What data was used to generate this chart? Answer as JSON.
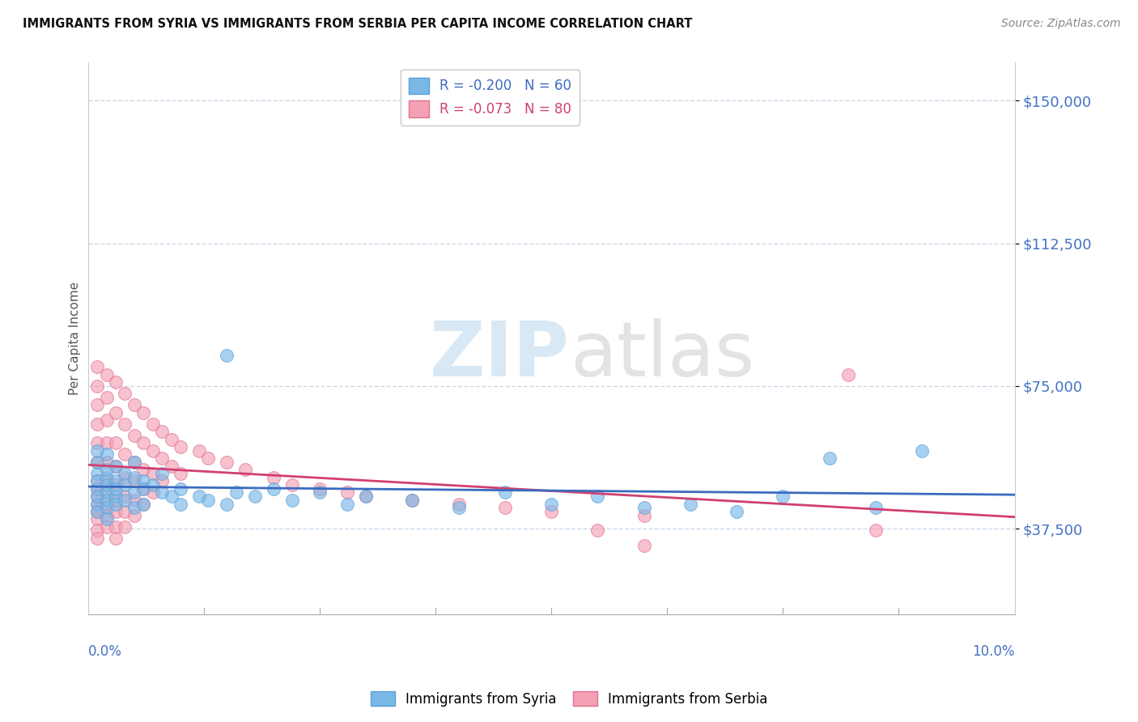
{
  "title": "IMMIGRANTS FROM SYRIA VS IMMIGRANTS FROM SERBIA PER CAPITA INCOME CORRELATION CHART",
  "source": "Source: ZipAtlas.com",
  "ylabel": "Per Capita Income",
  "yticks": [
    37500,
    75000,
    112500,
    150000
  ],
  "ytick_labels": [
    "$37,500",
    "$75,000",
    "$112,500",
    "$150,000"
  ],
  "xmin": 0.0,
  "xmax": 0.1,
  "ymin": 15000,
  "ymax": 160000,
  "syria_color": "#7ab8e8",
  "serbia_color": "#f4a0b5",
  "syria_edge_color": "#5a9fd4",
  "serbia_edge_color": "#e07090",
  "syria_line_color": "#3a6bbf",
  "serbia_line_color": "#d04070",
  "syria_R": -0.2,
  "syria_N": 60,
  "serbia_R": -0.073,
  "serbia_N": 80,
  "legend_label_syria": "R = -0.200   N = 60",
  "legend_label_serbia": "R = -0.073   N = 80",
  "bottom_legend_syria": "Immigrants from Syria",
  "bottom_legend_serbia": "Immigrants from Serbia",
  "watermark_zip": "ZIP",
  "watermark_atlas": "atlas",
  "background_color": "#ffffff",
  "grid_color": "#c8d8e8",
  "title_color": "#111111",
  "axis_label_color": "#4472c4",
  "syria_points": [
    [
      0.001,
      52000
    ],
    [
      0.001,
      48000
    ],
    [
      0.001,
      55000
    ],
    [
      0.001,
      44000
    ],
    [
      0.001,
      50000
    ],
    [
      0.001,
      46000
    ],
    [
      0.001,
      42000
    ],
    [
      0.001,
      58000
    ],
    [
      0.002,
      51000
    ],
    [
      0.002,
      47000
    ],
    [
      0.002,
      53000
    ],
    [
      0.002,
      45000
    ],
    [
      0.002,
      49000
    ],
    [
      0.002,
      43000
    ],
    [
      0.002,
      57000
    ],
    [
      0.002,
      40000
    ],
    [
      0.003,
      50000
    ],
    [
      0.003,
      46000
    ],
    [
      0.003,
      54000
    ],
    [
      0.003,
      44000
    ],
    [
      0.003,
      48000
    ],
    [
      0.004,
      52000
    ],
    [
      0.004,
      45000
    ],
    [
      0.004,
      49000
    ],
    [
      0.005,
      51000
    ],
    [
      0.005,
      47000
    ],
    [
      0.005,
      55000
    ],
    [
      0.005,
      43000
    ],
    [
      0.006,
      50000
    ],
    [
      0.006,
      44000
    ],
    [
      0.006,
      48000
    ],
    [
      0.007,
      49000
    ],
    [
      0.008,
      47000
    ],
    [
      0.008,
      52000
    ],
    [
      0.009,
      46000
    ],
    [
      0.01,
      48000
    ],
    [
      0.01,
      44000
    ],
    [
      0.012,
      46000
    ],
    [
      0.013,
      45000
    ],
    [
      0.015,
      83000
    ],
    [
      0.015,
      44000
    ],
    [
      0.016,
      47000
    ],
    [
      0.018,
      46000
    ],
    [
      0.02,
      48000
    ],
    [
      0.022,
      45000
    ],
    [
      0.025,
      47000
    ],
    [
      0.028,
      44000
    ],
    [
      0.03,
      46000
    ],
    [
      0.035,
      45000
    ],
    [
      0.04,
      43000
    ],
    [
      0.045,
      47000
    ],
    [
      0.05,
      44000
    ],
    [
      0.055,
      46000
    ],
    [
      0.06,
      43000
    ],
    [
      0.065,
      44000
    ],
    [
      0.07,
      42000
    ],
    [
      0.075,
      46000
    ],
    [
      0.08,
      56000
    ],
    [
      0.085,
      43000
    ],
    [
      0.09,
      58000
    ]
  ],
  "serbia_points": [
    [
      0.001,
      80000
    ],
    [
      0.001,
      75000
    ],
    [
      0.001,
      70000
    ],
    [
      0.001,
      65000
    ],
    [
      0.001,
      60000
    ],
    [
      0.001,
      55000
    ],
    [
      0.001,
      50000
    ],
    [
      0.001,
      48000
    ],
    [
      0.001,
      46000
    ],
    [
      0.001,
      44000
    ],
    [
      0.001,
      42000
    ],
    [
      0.001,
      40000
    ],
    [
      0.001,
      37000
    ],
    [
      0.001,
      35000
    ],
    [
      0.002,
      78000
    ],
    [
      0.002,
      72000
    ],
    [
      0.002,
      66000
    ],
    [
      0.002,
      60000
    ],
    [
      0.002,
      55000
    ],
    [
      0.002,
      50000
    ],
    [
      0.002,
      47000
    ],
    [
      0.002,
      44000
    ],
    [
      0.002,
      41000
    ],
    [
      0.002,
      38000
    ],
    [
      0.003,
      76000
    ],
    [
      0.003,
      68000
    ],
    [
      0.003,
      60000
    ],
    [
      0.003,
      54000
    ],
    [
      0.003,
      49000
    ],
    [
      0.003,
      45000
    ],
    [
      0.003,
      42000
    ],
    [
      0.003,
      38000
    ],
    [
      0.003,
      35000
    ],
    [
      0.004,
      73000
    ],
    [
      0.004,
      65000
    ],
    [
      0.004,
      57000
    ],
    [
      0.004,
      51000
    ],
    [
      0.004,
      46000
    ],
    [
      0.004,
      42000
    ],
    [
      0.004,
      38000
    ],
    [
      0.005,
      70000
    ],
    [
      0.005,
      62000
    ],
    [
      0.005,
      55000
    ],
    [
      0.005,
      50000
    ],
    [
      0.005,
      45000
    ],
    [
      0.005,
      41000
    ],
    [
      0.006,
      68000
    ],
    [
      0.006,
      60000
    ],
    [
      0.006,
      53000
    ],
    [
      0.006,
      48000
    ],
    [
      0.006,
      44000
    ],
    [
      0.007,
      65000
    ],
    [
      0.007,
      58000
    ],
    [
      0.007,
      52000
    ],
    [
      0.007,
      47000
    ],
    [
      0.008,
      63000
    ],
    [
      0.008,
      56000
    ],
    [
      0.008,
      50000
    ],
    [
      0.009,
      61000
    ],
    [
      0.009,
      54000
    ],
    [
      0.01,
      59000
    ],
    [
      0.01,
      52000
    ],
    [
      0.012,
      58000
    ],
    [
      0.013,
      56000
    ],
    [
      0.015,
      55000
    ],
    [
      0.017,
      53000
    ],
    [
      0.02,
      51000
    ],
    [
      0.022,
      49000
    ],
    [
      0.025,
      48000
    ],
    [
      0.028,
      47000
    ],
    [
      0.03,
      46000
    ],
    [
      0.035,
      45000
    ],
    [
      0.04,
      44000
    ],
    [
      0.045,
      43000
    ],
    [
      0.05,
      42000
    ],
    [
      0.06,
      41000
    ],
    [
      0.082,
      78000
    ],
    [
      0.085,
      37000
    ],
    [
      0.06,
      33000
    ],
    [
      0.055,
      37000
    ]
  ]
}
